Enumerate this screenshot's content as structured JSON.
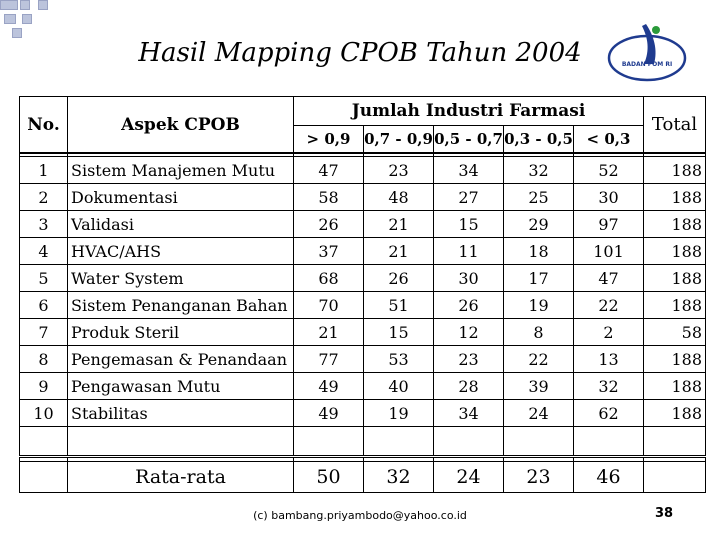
{
  "title": "Hasil Mapping CPOB Tahun 2004",
  "logo": {
    "text": "BADAN POM RI",
    "icon": "badan-pom-logo"
  },
  "table": {
    "headers": {
      "no": "No.",
      "aspek": "Aspek CPOB",
      "group": "Jumlah Industri Farmasi",
      "ranges": [
        "> 0,9",
        "0,7 - 0,9",
        "0,5 - 0,7",
        "0,3 - 0,5",
        "< 0,3"
      ],
      "total": "Total"
    },
    "rows": [
      {
        "no": "1",
        "aspek": "Sistem Manajemen Mutu",
        "values": [
          "47",
          "23",
          "34",
          "32",
          "52"
        ],
        "total": "188"
      },
      {
        "no": "2",
        "aspek": "Dokumentasi",
        "values": [
          "58",
          "48",
          "27",
          "25",
          "30"
        ],
        "total": "188"
      },
      {
        "no": "3",
        "aspek": "Validasi",
        "values": [
          "26",
          "21",
          "15",
          "29",
          "97"
        ],
        "total": "188"
      },
      {
        "no": "4",
        "aspek": "HVAC/AHS",
        "values": [
          "37",
          "21",
          "11",
          "18",
          "101"
        ],
        "total": "188"
      },
      {
        "no": "5",
        "aspek": "Water System",
        "values": [
          "68",
          "26",
          "30",
          "17",
          "47"
        ],
        "total": "188"
      },
      {
        "no": "6",
        "aspek": "Sistem Penanganan Bahan",
        "values": [
          "70",
          "51",
          "26",
          "19",
          "22"
        ],
        "total": "188"
      },
      {
        "no": "7",
        "aspek": "Produk Steril",
        "values": [
          "21",
          "15",
          "12",
          "8",
          "2"
        ],
        "total": "58"
      },
      {
        "no": "8",
        "aspek": "Pengemasan & Penandaan",
        "values": [
          "77",
          "53",
          "23",
          "22",
          "13"
        ],
        "total": "188"
      },
      {
        "no": "9",
        "aspek": "Pengawasan Mutu",
        "values": [
          "49",
          "40",
          "28",
          "39",
          "32"
        ],
        "total": "188"
      },
      {
        "no": "10",
        "aspek": "Stabilitas",
        "values": [
          "49",
          "19",
          "34",
          "24",
          "62"
        ],
        "total": "188"
      }
    ],
    "average": {
      "label": "Rata-rata",
      "values": [
        "50",
        "32",
        "24",
        "23",
        "46"
      ]
    }
  },
  "footer": "(c) bambang.priyambodo@yahoo.co.id",
  "page_number": "38",
  "colors": {
    "corner": "#bcc4dc",
    "logo_blue": "#1f3b8f",
    "logo_green": "#2a9a3a"
  }
}
